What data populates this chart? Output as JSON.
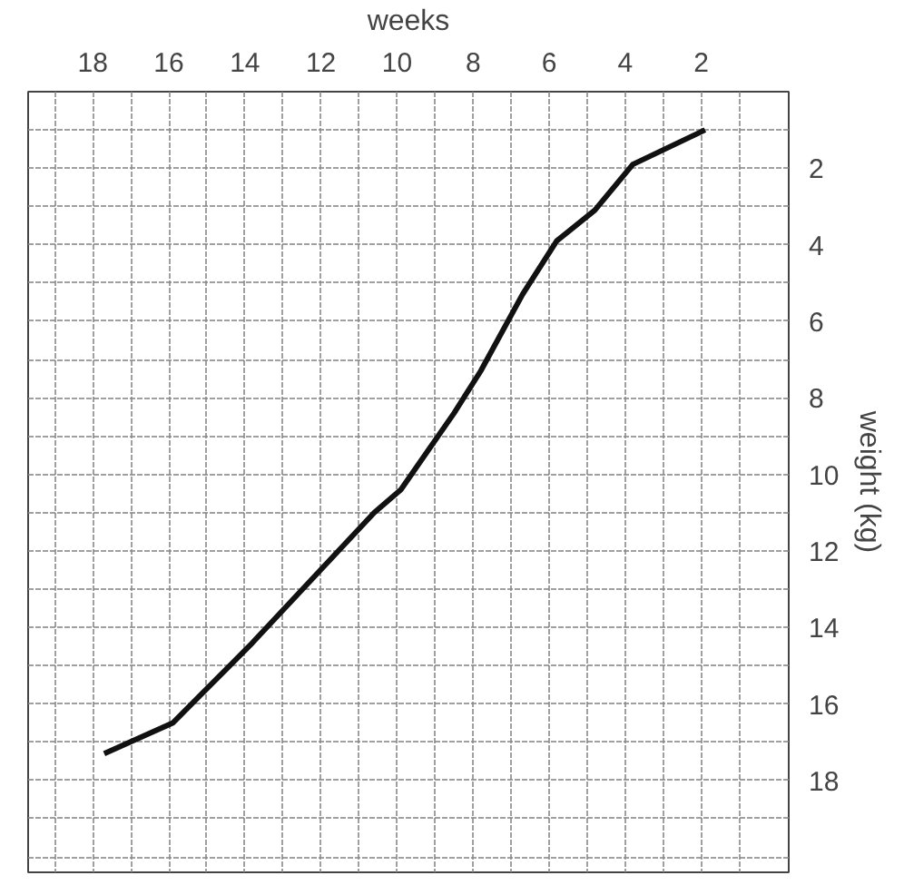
{
  "chart_data": {
    "type": "line",
    "xlabel": "weeks",
    "ylabel": "weight (kg)",
    "x": [
      1.9,
      3.8,
      4.8,
      5.8,
      6.7,
      7.8,
      8.5,
      9.9,
      10.6,
      13.8,
      15.9,
      17.7
    ],
    "series": [
      {
        "color": "#111111",
        "values": [
          1.0,
          1.9,
          3.1,
          3.9,
          5.3,
          7.3,
          8.4,
          10.4,
          11.0,
          14.4,
          16.5,
          17.3
        ]
      }
    ],
    "xlim": [
      19.7,
      -0.3
    ],
    "ylim": [
      20.4,
      0
    ],
    "xticks": [
      {
        "value": 1,
        "label": null
      },
      2,
      {
        "value": 3,
        "label": null
      },
      4,
      {
        "value": 5,
        "label": null
      },
      6,
      {
        "value": 7,
        "label": null
      },
      8,
      {
        "value": 9,
        "label": null
      },
      10,
      {
        "value": 11,
        "label": null
      },
      12,
      {
        "value": 13,
        "label": null
      },
      14,
      {
        "value": 15,
        "label": null
      },
      16,
      {
        "value": 17,
        "label": null
      },
      18,
      {
        "value": 19,
        "label": null
      }
    ],
    "yticks": [
      {
        "value": 1,
        "label": null
      },
      2,
      {
        "value": 3,
        "label": null
      },
      4,
      {
        "value": 5,
        "label": null
      },
      6,
      {
        "value": 7,
        "label": null
      },
      8,
      {
        "value": 9,
        "label": null
      },
      10,
      {
        "value": 11,
        "label": null
      },
      12,
      {
        "value": 13,
        "label": null
      },
      14,
      {
        "value": 15,
        "label": null
      },
      16,
      {
        "value": 17,
        "label": null
      },
      18,
      {
        "value": 19,
        "label": null
      },
      {
        "value": 20,
        "label": null
      }
    ],
    "grid": true,
    "line_style": "solid",
    "marker": "none"
  }
}
